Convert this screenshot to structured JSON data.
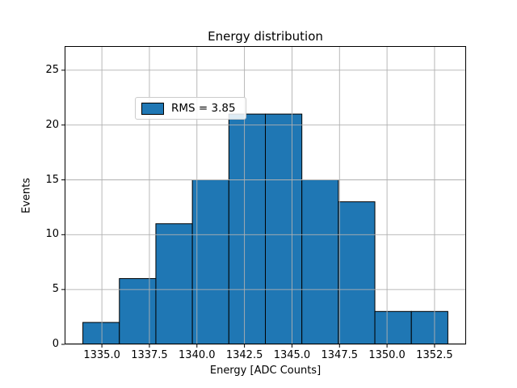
{
  "chart_data": {
    "type": "bar",
    "subtype": "histogram",
    "title": "Energy distribution",
    "xlabel": "Energy [ADC Counts]",
    "ylabel": "Events",
    "legend": {
      "label": "RMS = 3.85",
      "position": "upper left"
    },
    "bin_edges": [
      1334.0,
      1335.92,
      1337.84,
      1339.76,
      1341.68,
      1343.6,
      1345.52,
      1347.44,
      1349.36,
      1351.28,
      1353.2
    ],
    "counts": [
      2,
      6,
      11,
      15,
      21,
      21,
      15,
      13,
      3,
      3
    ],
    "x_ticks": [
      1335.0,
      1337.5,
      1340.0,
      1342.5,
      1345.0,
      1347.5,
      1350.0,
      1352.5
    ],
    "x_tick_labels": [
      "1335.0",
      "1337.5",
      "1340.0",
      "1342.5",
      "1345.0",
      "1347.5",
      "1350.0",
      "1352.5"
    ],
    "y_ticks": [
      0,
      5,
      10,
      15,
      20,
      25
    ],
    "y_tick_labels": [
      "0",
      "5",
      "10",
      "15",
      "20",
      "25"
    ],
    "xlim": [
      1333.04,
      1354.16
    ],
    "ylim": [
      0,
      27.2
    ],
    "grid": true,
    "colors": {
      "bar_fill": "#1f77b4",
      "bar_edge": "#000000",
      "grid": "#b0b0b0",
      "spine": "#000000",
      "tick": "#000000",
      "background": "#ffffff",
      "legend_border": "#cccccc"
    }
  }
}
